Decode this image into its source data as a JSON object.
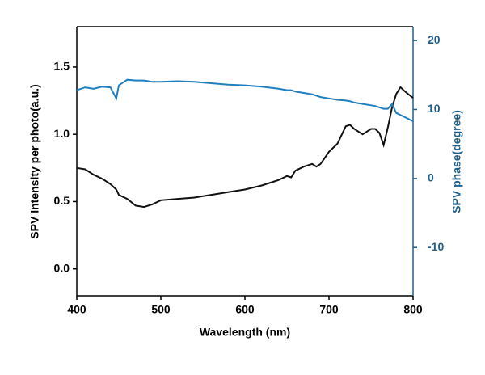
{
  "chart_data": {
    "type": "line",
    "x_label": "Wavelength (nm)",
    "y_label": "SPV Intensity per photo(a.u.)",
    "y2_label": "SPV phase(degree)",
    "x": [
      400,
      410,
      420,
      430,
      440,
      447,
      450,
      460,
      470,
      480,
      490,
      500,
      520,
      540,
      560,
      580,
      600,
      620,
      640,
      650,
      655,
      660,
      670,
      680,
      685,
      690,
      700,
      710,
      720,
      725,
      730,
      740,
      750,
      755,
      760,
      765,
      770,
      775,
      780,
      785,
      790,
      800
    ],
    "series": [
      {
        "color": "#111111",
        "values": [
          0.75,
          0.74,
          0.7,
          0.67,
          0.63,
          0.59,
          0.55,
          0.52,
          0.47,
          0.46,
          0.48,
          0.51,
          0.52,
          0.53,
          0.55,
          0.57,
          0.59,
          0.62,
          0.66,
          0.69,
          0.68,
          0.73,
          0.76,
          0.78,
          0.76,
          0.78,
          0.87,
          0.93,
          1.06,
          1.07,
          1.04,
          1.0,
          1.04,
          1.04,
          1.01,
          0.92,
          1.05,
          1.2,
          1.3,
          1.35,
          1.32,
          1.27
        ]
      },
      {
        "color": "#1f7fc0",
        "axis": "y2",
        "values": [
          12.8,
          13.2,
          13.0,
          13.3,
          13.2,
          11.6,
          13.5,
          14.3,
          14.2,
          14.2,
          14.0,
          14.0,
          14.1,
          14.0,
          13.8,
          13.6,
          13.5,
          13.3,
          13.0,
          12.8,
          12.8,
          12.6,
          12.4,
          12.2,
          12.0,
          11.8,
          11.6,
          11.4,
          11.3,
          11.2,
          11.0,
          10.8,
          10.6,
          10.5,
          10.3,
          10.1,
          10.1,
          10.8,
          9.5,
          9.2,
          8.9,
          8.3
        ]
      }
    ],
    "xlim": [
      400,
      800
    ],
    "xticks": [
      400,
      500,
      600,
      700,
      800
    ],
    "ylim": [
      -0.2,
      1.8
    ],
    "yticks": [
      {
        "value": 0,
        "label": "0.0"
      },
      0.5,
      {
        "value": 1,
        "label": "1.0"
      },
      1.5
    ],
    "y2lim": [
      -17,
      22
    ],
    "y2ticks": [
      -10,
      0,
      10,
      20
    ],
    "y2_color": "#1f5f8b"
  }
}
